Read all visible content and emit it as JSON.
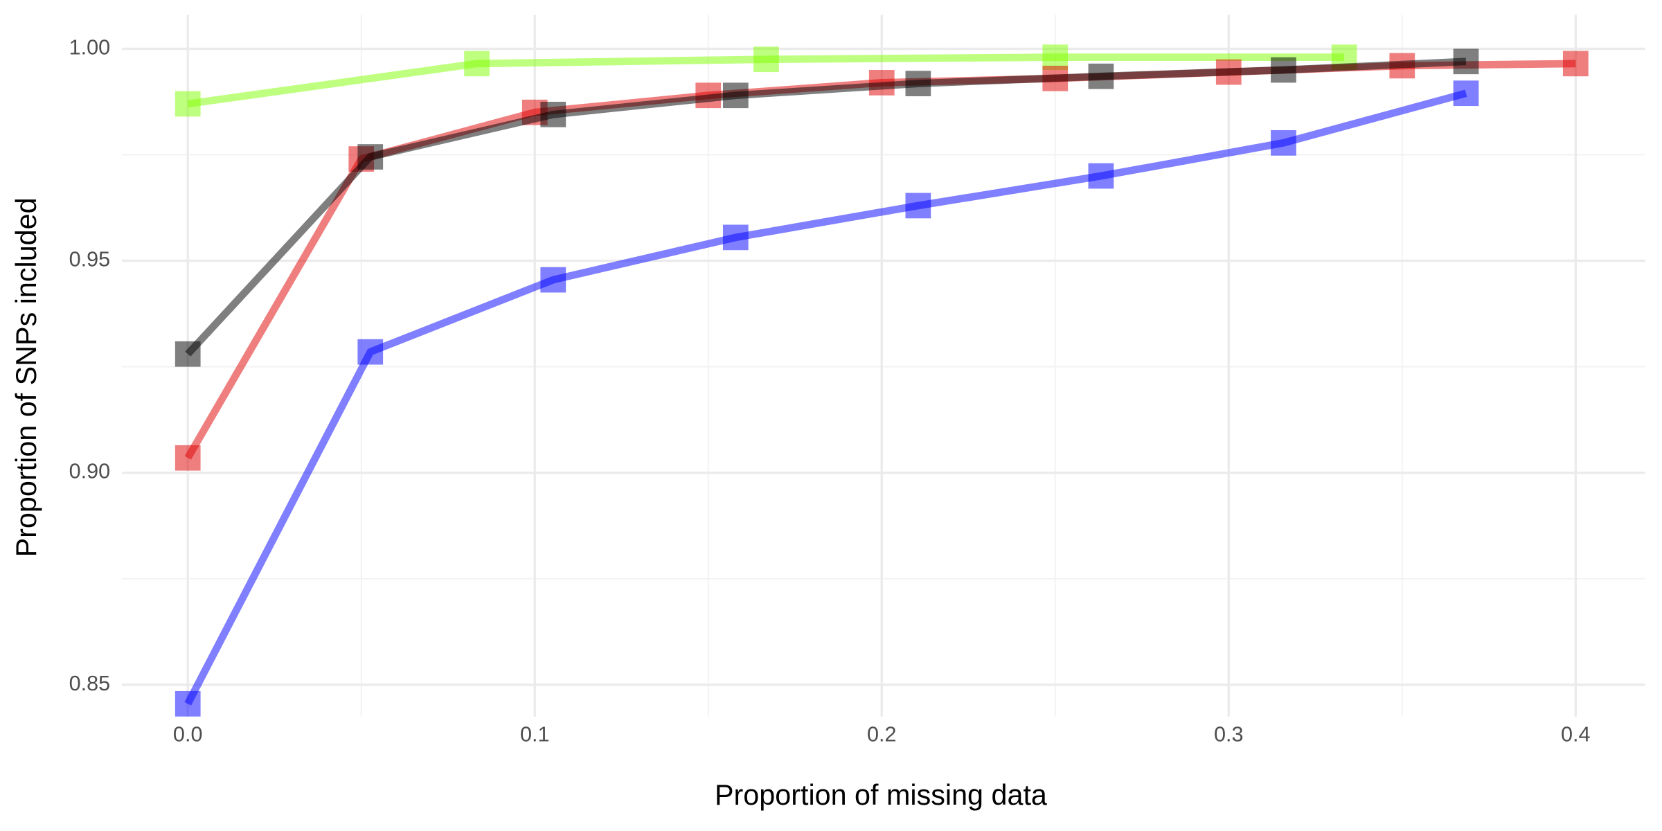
{
  "chart_data": {
    "type": "line",
    "x_label": "Proportion of missing data",
    "y_label": "Proportion of SNPs included",
    "xlim": [
      -0.019,
      0.42
    ],
    "ylim": [
      0.8425,
      1.008
    ],
    "xticks": [
      {
        "value": 0,
        "label": "0.0"
      },
      0.1,
      0.2,
      0.3,
      0.4
    ],
    "yticks": [
      {
        "value": 0.85,
        "label": "0.85"
      },
      {
        "value": 0.9,
        "label": "0.90"
      },
      {
        "value": 0.95,
        "label": "0.95"
      },
      {
        "value": 1,
        "label": "1.00"
      }
    ],
    "x_minor_ticks": [
      0.05,
      0.15,
      0.25,
      0.35
    ],
    "y_minor_ticks": [
      0.875,
      0.925,
      0.975
    ],
    "grid": true,
    "marker": "square",
    "opacity": 0.5,
    "series": [
      {
        "color": "#80ff00",
        "x": [
          0,
          0.0833,
          0.1667,
          0.25,
          0.3333
        ],
        "values": [
          0.987,
          0.9965,
          0.9975,
          0.998,
          0.998
        ]
      },
      {
        "color": "#e00000",
        "x": [
          0,
          0.05,
          0.1,
          0.15,
          0.2,
          0.25,
          0.3,
          0.35,
          0.4
        ],
        "values": [
          0.9035,
          0.974,
          0.985,
          0.989,
          0.992,
          0.993,
          0.9945,
          0.996,
          0.9965
        ]
      },
      {
        "color": "#000000",
        "x": [
          0,
          0.0526,
          0.1053,
          0.1579,
          0.2105,
          0.2632,
          0.3158,
          0.3684
        ],
        "values": [
          0.928,
          0.9745,
          0.9845,
          0.989,
          0.9918,
          0.9935,
          0.995,
          0.997
        ]
      },
      {
        "color": "#0000ff",
        "x": [
          0,
          0.0526,
          0.1053,
          0.1579,
          0.2105,
          0.2632,
          0.3158,
          0.3684
        ],
        "values": [
          0.8455,
          0.9285,
          0.9455,
          0.9555,
          0.963,
          0.97,
          0.9778,
          0.9895
        ]
      }
    ]
  }
}
